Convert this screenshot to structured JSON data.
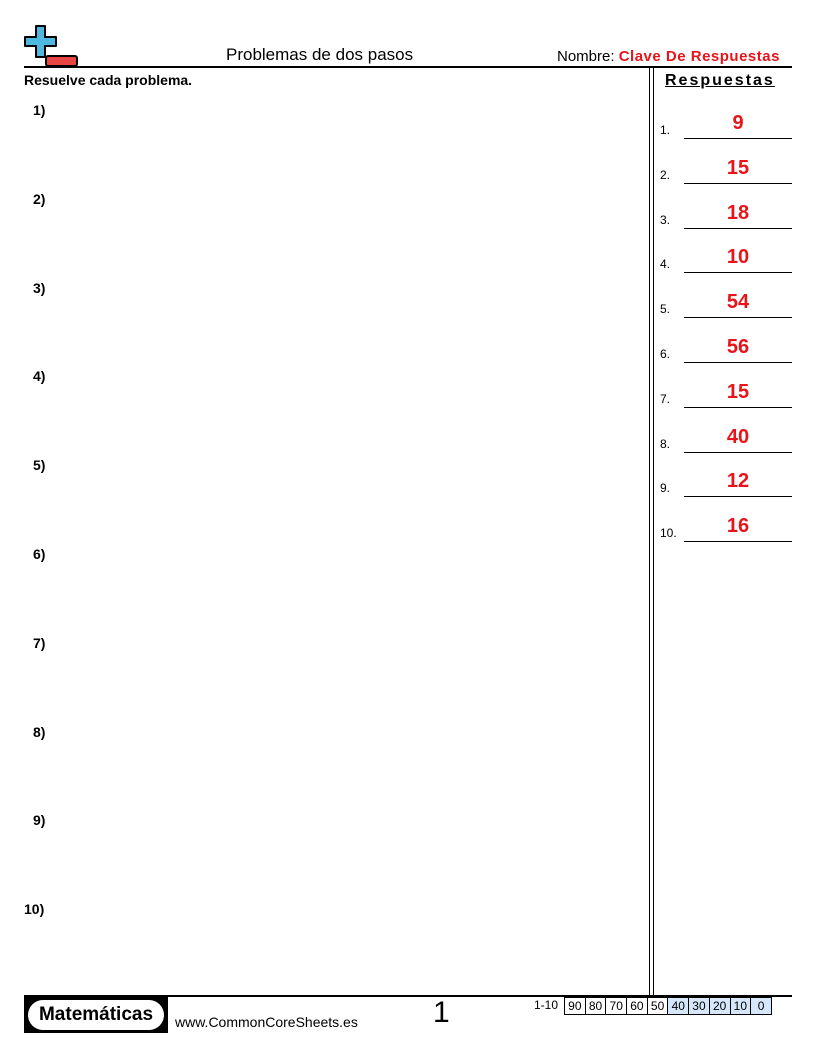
{
  "header": {
    "title": "Problemas de dos pasos",
    "name_label": "Nombre:",
    "name_value": "Clave De Respuestas",
    "logo": "plus-minus-icon"
  },
  "instructions": "Resuelve cada problema.",
  "problems": [
    "1)",
    "2)",
    "3)",
    "4)",
    "5)",
    "6)",
    "7)",
    "8)",
    "9)",
    "10)"
  ],
  "answers": {
    "heading": "Respuestas",
    "items": [
      {
        "n": "1.",
        "v": "9"
      },
      {
        "n": "2.",
        "v": "15"
      },
      {
        "n": "3.",
        "v": "18"
      },
      {
        "n": "4.",
        "v": "10"
      },
      {
        "n": "5.",
        "v": "54"
      },
      {
        "n": "6.",
        "v": "56"
      },
      {
        "n": "7.",
        "v": "15"
      },
      {
        "n": "8.",
        "v": "40"
      },
      {
        "n": "9.",
        "v": "12"
      },
      {
        "n": "10.",
        "v": "16"
      }
    ]
  },
  "footer": {
    "brand": "Matemáticas",
    "url": "www.CommonCoreSheets.es",
    "page": "1",
    "range": "1-10",
    "scores": [
      "90",
      "80",
      "70",
      "60",
      "50",
      "40",
      "30",
      "20",
      "10",
      "0"
    ]
  },
  "colors": {
    "answer": "#e8141a",
    "logo_plus": "#4fb8de",
    "logo_minus": "#e84545",
    "score_low": "#d6e6fb"
  }
}
